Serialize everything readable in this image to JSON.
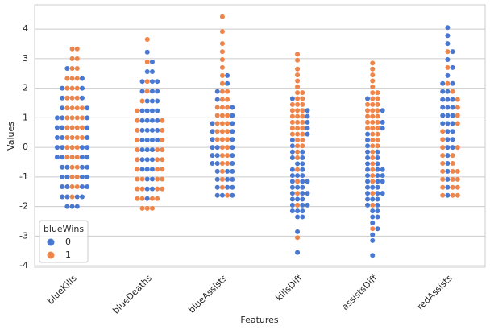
{
  "chart_data": {
    "type": "swarm",
    "xlabel": "Features",
    "ylabel": "Values",
    "categories": [
      "blueKills",
      "blueDeaths",
      "blueAssists",
      "killsDiff",
      "assistsDiff",
      "redAssists"
    ],
    "ylim": [
      -4.05,
      4.82
    ],
    "yticks": [
      -4,
      -3,
      -2,
      -1,
      0,
      1,
      2,
      3,
      4
    ],
    "grid": true,
    "legend_title": "blueWins",
    "legend": "lower left",
    "series": [
      {
        "name": "0",
        "color": "#4878d0",
        "values": [
          [
            -2,
            -2,
            -2,
            -1.67,
            -1.67,
            -1.67,
            -1.67,
            -1.33,
            -1.33,
            -1.33,
            -1.33,
            -1,
            -1,
            -1,
            -1,
            -0.67,
            -0.67,
            -0.67,
            -0.67,
            -0.33,
            -0.33,
            -0.33,
            -0.33,
            0,
            0,
            0,
            0,
            0.33,
            0.33,
            0.33,
            0.67,
            0.67,
            0.67,
            1,
            1,
            1,
            1.33,
            1.33,
            1.67,
            1.67,
            2,
            2,
            2.33,
            2.67
          ],
          [
            -1.73,
            -1.4,
            -1.4,
            -1.07,
            -1.07,
            -0.74,
            -0.74,
            -0.74,
            -0.41,
            -0.41,
            -0.41,
            -0.08,
            -0.08,
            -0.08,
            0.25,
            0.25,
            0.25,
            0.25,
            0.58,
            0.58,
            0.58,
            0.58,
            0.91,
            0.91,
            0.91,
            0.91,
            1.24,
            1.24,
            1.24,
            1.24,
            1.57,
            1.57,
            1.57,
            1.9,
            1.9,
            1.9,
            2.23,
            2.23,
            2.23,
            2.56,
            2.56,
            2.89,
            3.22
          ],
          [
            -1.62,
            -1.62,
            -1.62,
            -1.35,
            -1.35,
            -1.35,
            -1.08,
            -1.08,
            -1.08,
            -0.81,
            -0.81,
            -0.81,
            -0.54,
            -0.54,
            -0.54,
            -0.27,
            -0.27,
            -0.27,
            0,
            0,
            0,
            0.27,
            0.27,
            0.54,
            0.54,
            0.81,
            0.81,
            1.08,
            1.35,
            1.62,
            1.89,
            2.16,
            2.43
          ],
          [
            -3.55,
            -2.85,
            -2.35,
            -2.35,
            -2.15,
            -2.15,
            -2.15,
            -1.95,
            -1.95,
            -1.95,
            -1.75,
            -1.75,
            -1.75,
            -1.55,
            -1.55,
            -1.55,
            -1.35,
            -1.35,
            -1.35,
            -1.15,
            -1.15,
            -1.15,
            -0.95,
            -0.95,
            -0.95,
            -0.75,
            -0.75,
            -0.55,
            -0.55,
            -0.35,
            -0.35,
            -0.15,
            -0.15,
            0.05,
            0.25,
            0.45,
            0.65,
            0.85,
            1.05,
            1.25,
            1.65
          ],
          [
            -3.65,
            -3.15,
            -2.95,
            -2.75,
            -2.55,
            -2.35,
            -2.35,
            -2.15,
            -2.15,
            -1.95,
            -1.95,
            -1.75,
            -1.75,
            -1.75,
            -1.55,
            -1.55,
            -1.55,
            -1.35,
            -1.35,
            -1.35,
            -1.15,
            -1.15,
            -1.15,
            -0.95,
            -0.95,
            -0.95,
            -0.75,
            -0.75,
            -0.75,
            -0.55,
            -0.55,
            -0.35,
            -0.35,
            -0.15,
            -0.15,
            0.05,
            0.25,
            0.45,
            0.65,
            0.85,
            1.25,
            1.65
          ],
          [
            -1.62,
            -1.35,
            -1.08,
            -0.81,
            -0.54,
            -0.27,
            0,
            0,
            0.27,
            0.27,
            0.54,
            0.54,
            0.81,
            0.81,
            0.81,
            1.08,
            1.08,
            1.08,
            1.35,
            1.35,
            1.35,
            1.62,
            1.62,
            1.62,
            1.89,
            1.89,
            2.16,
            2.16,
            2.43,
            2.7,
            2.97,
            3.24,
            3.51,
            3.78,
            4.05
          ]
        ]
      },
      {
        "name": "1",
        "color": "#ee854a",
        "values": [
          [
            -1.67,
            -1.33,
            -1.33,
            -1,
            -1,
            -0.67,
            -0.67,
            -0.33,
            -0.33,
            -0.33,
            0,
            0,
            0,
            0.33,
            0.33,
            0.33,
            0.33,
            0.67,
            0.67,
            0.67,
            0.67,
            1,
            1,
            1,
            1,
            1.33,
            1.33,
            1.33,
            1.33,
            1.67,
            1.67,
            1.67,
            2,
            2,
            2,
            2.33,
            2.33,
            2.33,
            2.67,
            2.67,
            3,
            3,
            3.33,
            3.33
          ],
          [
            -2.06,
            -2.06,
            -2.06,
            -1.73,
            -1.73,
            -1.73,
            -1.73,
            -1.4,
            -1.4,
            -1.4,
            -1.4,
            -1.07,
            -1.07,
            -1.07,
            -1.07,
            -0.74,
            -0.74,
            -0.74,
            -0.41,
            -0.41,
            -0.41,
            -0.08,
            -0.08,
            -0.08,
            0.25,
            0.25,
            0.58,
            0.58,
            0.91,
            0.91,
            1.24,
            1.57,
            1.9,
            2.23,
            2.89,
            3.65
          ],
          [
            -1.62,
            -1.35,
            -1.08,
            -0.81,
            -0.54,
            -0.54,
            -0.27,
            -0.27,
            0,
            0,
            0.27,
            0.27,
            0.27,
            0.54,
            0.54,
            0.54,
            0.81,
            0.81,
            0.81,
            1.08,
            1.08,
            1.08,
            1.35,
            1.35,
            1.35,
            1.62,
            1.62,
            1.89,
            1.89,
            2.16,
            2.43,
            2.7,
            2.97,
            3.24,
            3.51,
            3.92,
            4.42
          ],
          [
            -3.05,
            -1.95,
            -1.55,
            -1.15,
            -0.75,
            -0.35,
            -0.15,
            0.05,
            0.05,
            0.25,
            0.25,
            0.45,
            0.45,
            0.45,
            0.65,
            0.65,
            0.65,
            0.85,
            0.85,
            0.85,
            1.05,
            1.05,
            1.05,
            1.25,
            1.25,
            1.25,
            1.45,
            1.45,
            1.45,
            1.65,
            1.65,
            1.85,
            1.85,
            2.05,
            2.25,
            2.45,
            2.65,
            2.95,
            3.15
          ],
          [
            -2.75,
            -1.95,
            -1.55,
            -1.15,
            -0.95,
            -0.75,
            -0.55,
            -0.35,
            -0.15,
            0.05,
            0.05,
            0.25,
            0.25,
            0.45,
            0.45,
            0.65,
            0.65,
            0.65,
            0.85,
            0.85,
            0.85,
            1.05,
            1.05,
            1.05,
            1.25,
            1.25,
            1.25,
            1.45,
            1.45,
            1.45,
            1.65,
            1.65,
            1.85,
            1.85,
            2.05,
            2.25,
            2.45,
            2.65,
            2.85
          ],
          [
            -1.62,
            -1.62,
            -1.62,
            -1.35,
            -1.35,
            -1.35,
            -1.08,
            -1.08,
            -1.08,
            -0.81,
            -0.81,
            -0.81,
            -0.54,
            -0.54,
            -0.27,
            -0.27,
            0,
            0,
            0.27,
            0.54,
            0.81,
            1.08,
            1.35,
            1.62,
            1.89,
            2.16,
            2.7,
            3.24
          ]
        ]
      }
    ]
  }
}
